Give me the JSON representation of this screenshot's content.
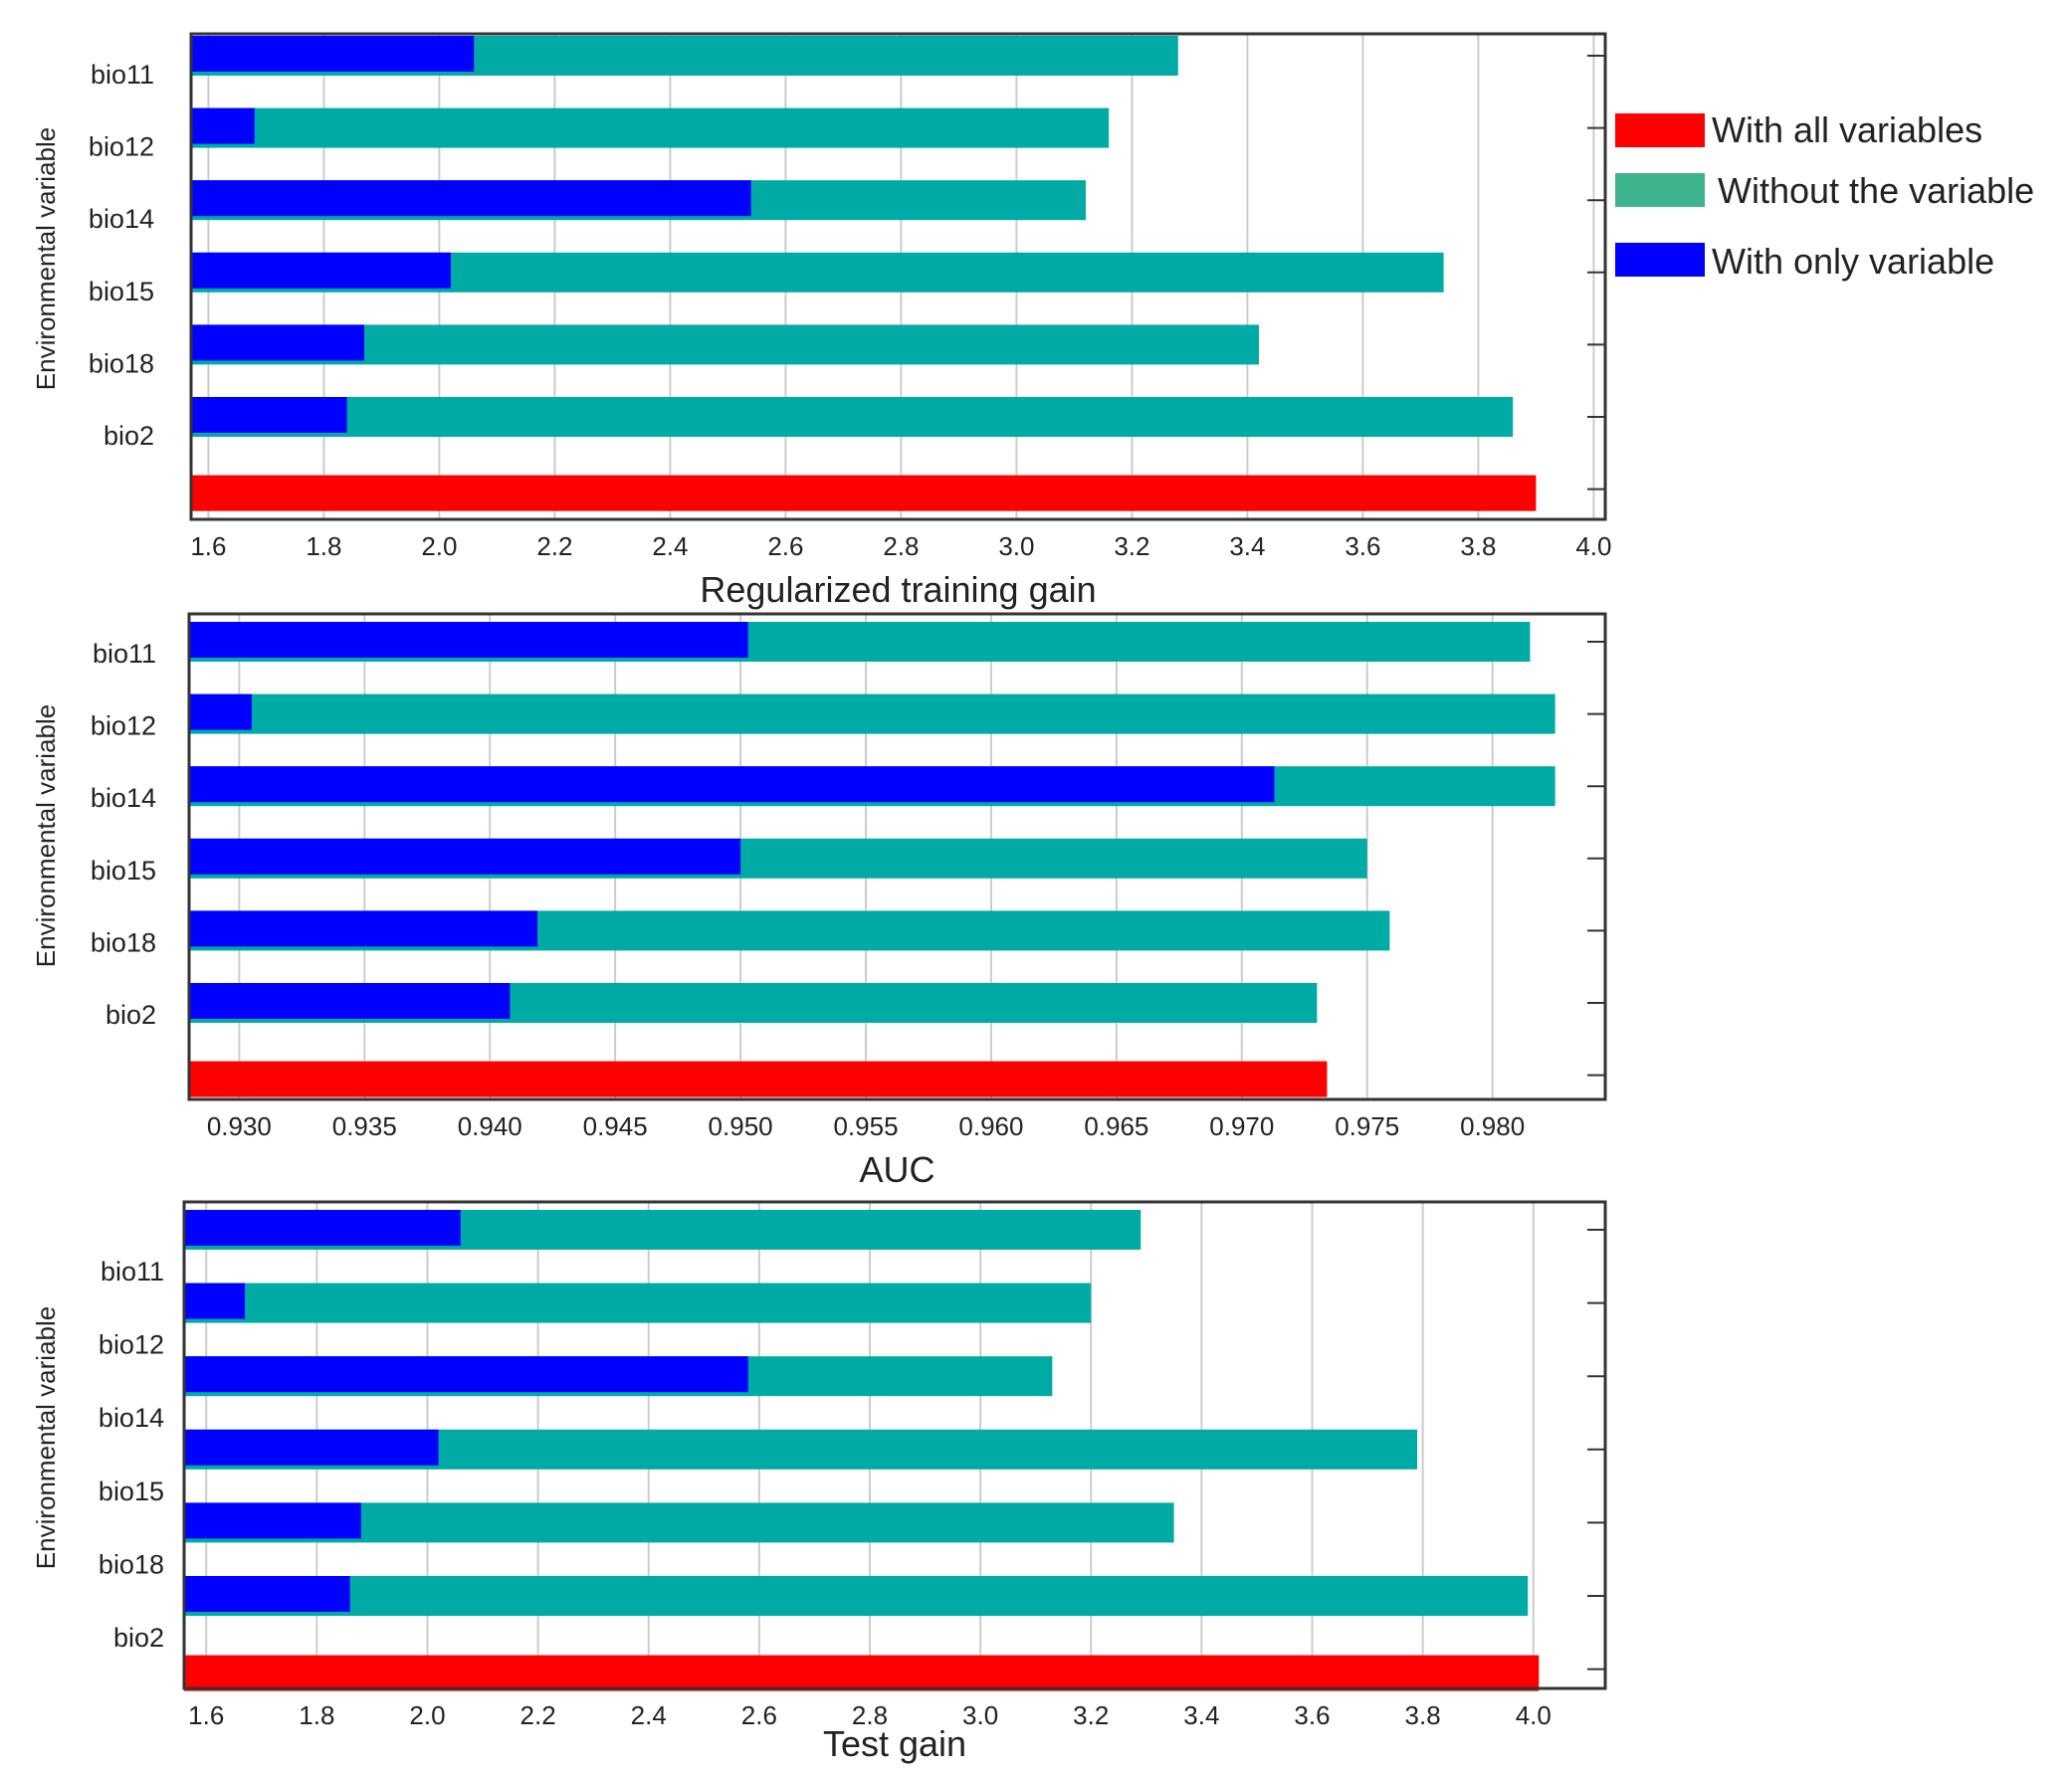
{
  "colors": {
    "all": "#ff0000",
    "without": "#00aaa5",
    "without_legend": "#3db38e",
    "only": "#0000ff",
    "grid": "#cccccc",
    "frame": "#333333",
    "text": "#222222"
  },
  "legend": {
    "all": "With all variables",
    "without": "Without the variable",
    "only": "With only variable"
  },
  "chart_data": [
    {
      "type": "bar",
      "orientation": "horizontal",
      "title": "",
      "xlabel": "Regularized training gain",
      "ylabel": "Environmental variable",
      "xlim": [
        1.57,
        4.02
      ],
      "xticks": [
        "1.6",
        "1.8",
        "2.0",
        "2.2",
        "2.4",
        "2.6",
        "2.8",
        "3.0",
        "3.2",
        "3.4",
        "3.6",
        "3.8",
        "4.0"
      ],
      "categories": [
        "bio11",
        "bio12",
        "bio14",
        "bio15",
        "bio18",
        "bio2"
      ],
      "series": [
        {
          "name": "Without the variable",
          "values": [
            3.28,
            3.16,
            3.12,
            3.74,
            3.42,
            3.86
          ]
        },
        {
          "name": "With only variable",
          "values": [
            2.06,
            1.68,
            2.54,
            2.02,
            1.87,
            1.84
          ]
        }
      ],
      "all_variables": 3.9
    },
    {
      "type": "bar",
      "orientation": "horizontal",
      "title": "",
      "xlabel": "AUC",
      "ylabel": "Environmental variable",
      "xlim": [
        0.928,
        0.9845
      ],
      "xticks": [
        "0.930",
        "0.935",
        "0.940",
        "0.945",
        "0.950",
        "0.955",
        "0.960",
        "0.965",
        "0.970",
        "0.975",
        "0.980"
      ],
      "categories": [
        "bio11",
        "bio12",
        "bio14",
        "bio15",
        "bio18",
        "bio2"
      ],
      "series": [
        {
          "name": "Without the variable",
          "values": [
            0.9815,
            0.9825,
            0.9825,
            0.975,
            0.9759,
            0.973
          ]
        },
        {
          "name": "With only variable",
          "values": [
            0.9503,
            0.9305,
            0.9713,
            0.95,
            0.9419,
            0.9408
          ]
        }
      ],
      "all_variables": 0.9734
    },
    {
      "type": "bar",
      "orientation": "horizontal",
      "title": "",
      "xlabel": "Test gain",
      "ylabel": "Environmental variable",
      "xlim": [
        1.56,
        4.13
      ],
      "xticks": [
        "1.6",
        "1.8",
        "2.0",
        "2.2",
        "2.4",
        "2.6",
        "2.8",
        "3.0",
        "3.2",
        "3.4",
        "3.6",
        "3.8",
        "4.0"
      ],
      "categories": [
        "bio11",
        "bio12",
        "bio14",
        "bio15",
        "bio18",
        "bio2"
      ],
      "series": [
        {
          "name": "Without the variable",
          "values": [
            3.29,
            3.2,
            3.13,
            3.79,
            3.35,
            3.99
          ]
        },
        {
          "name": "With only variable",
          "values": [
            2.06,
            1.67,
            2.58,
            2.02,
            1.88,
            1.86
          ]
        }
      ],
      "all_variables": 4.01
    }
  ]
}
